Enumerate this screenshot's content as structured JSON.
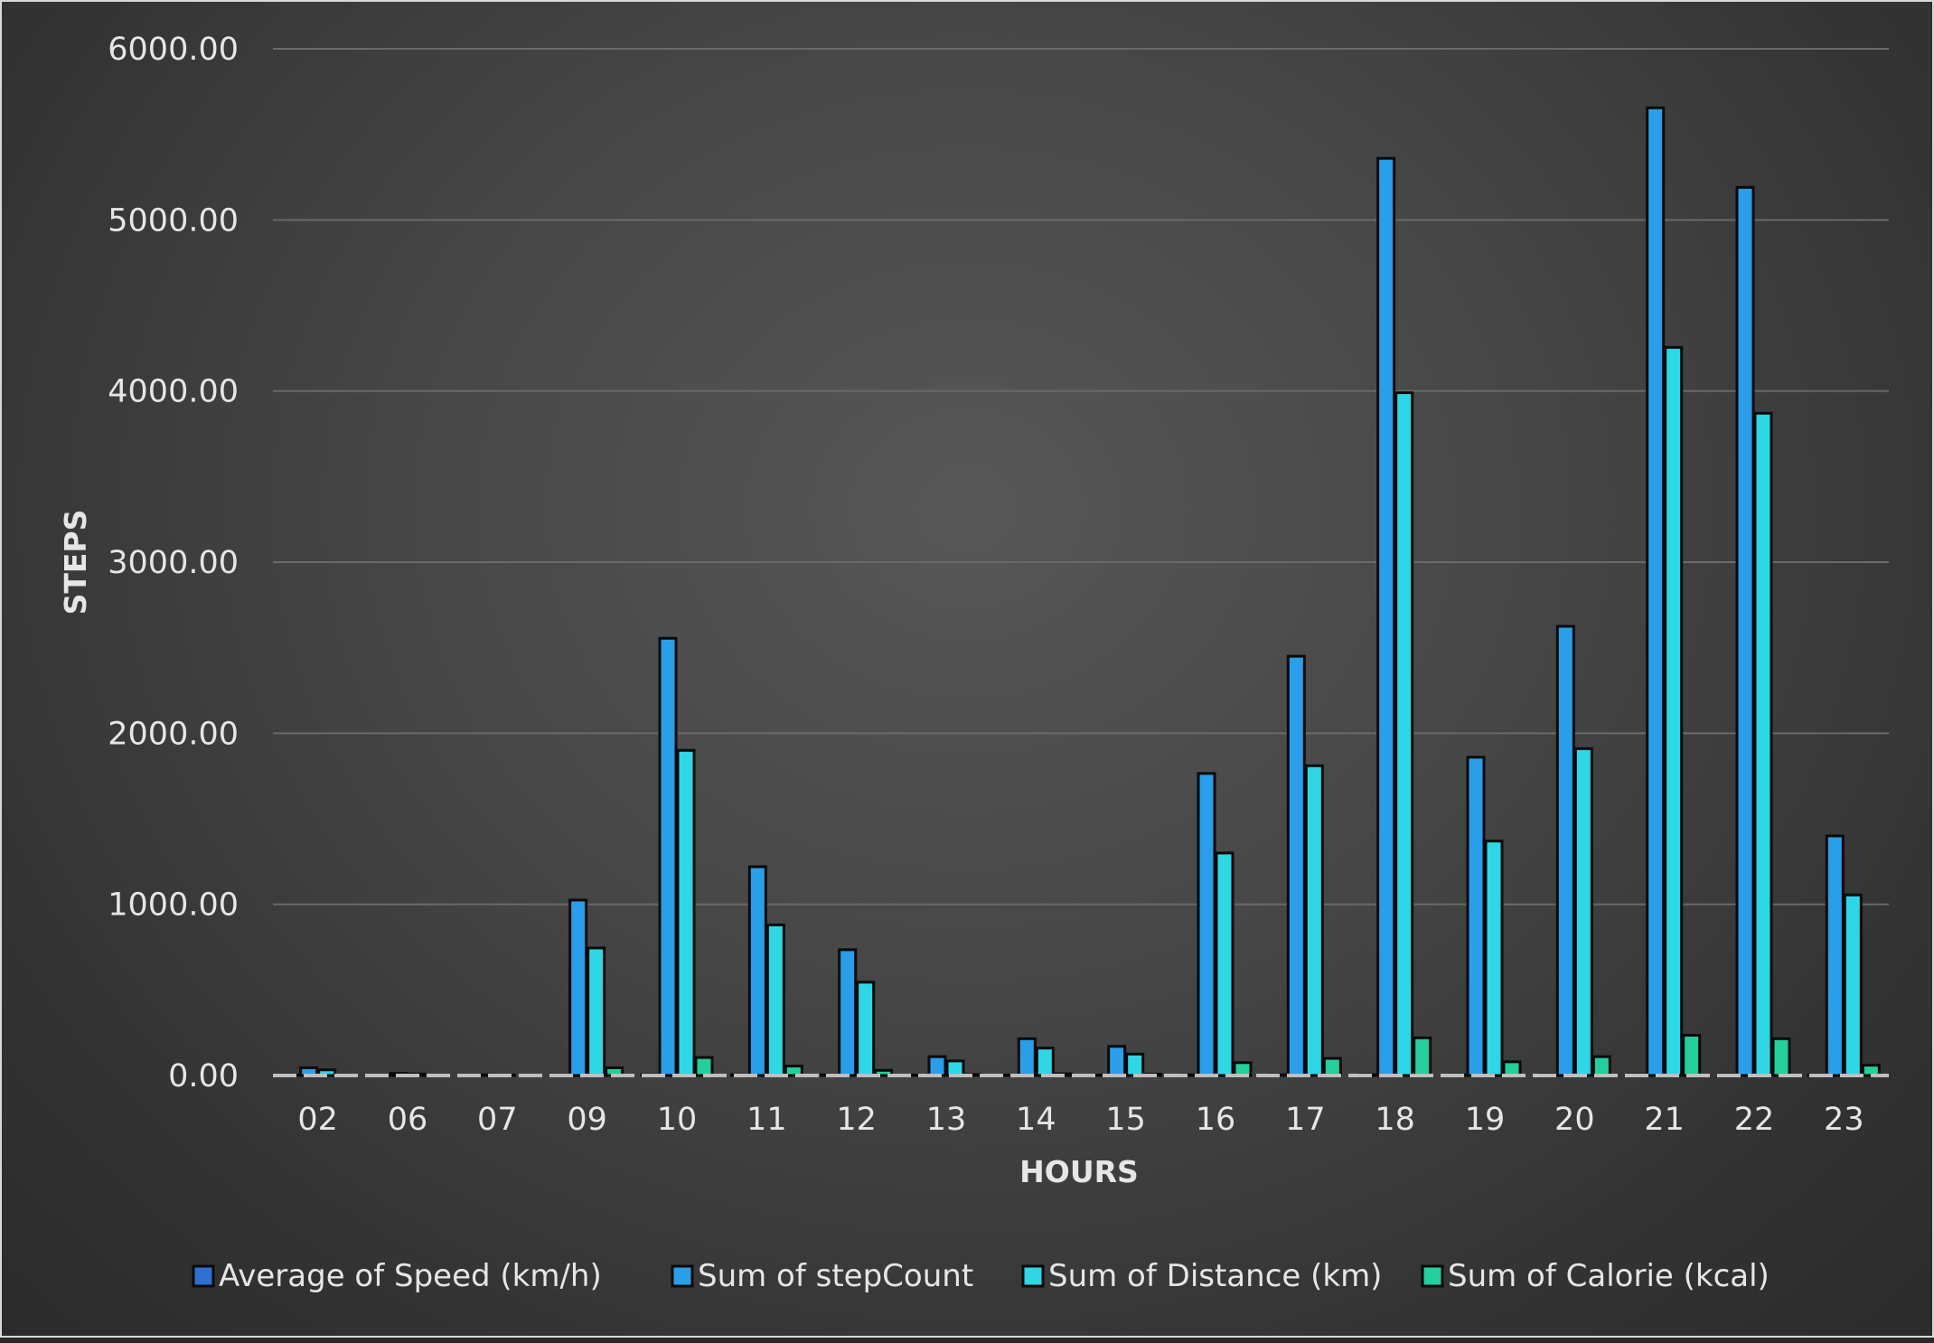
{
  "colors": {
    "speed": "#2f6fd0",
    "steps": "#2a9ee8",
    "distance": "#2ed6e6",
    "calorie": "#24cf9c",
    "outline": "#0a0a0a",
    "gridline": "#6a6a6a",
    "axis_line": "#bfbfbf"
  },
  "chart_data": {
    "type": "bar",
    "xlabel": "HOURS",
    "ylabel": "STEPS",
    "ylim": [
      0,
      6000
    ],
    "ytick_labels": [
      "0.00",
      "1000.00",
      "2000.00",
      "3000.00",
      "4000.00",
      "5000.00",
      "6000.00"
    ],
    "yticks": [
      0,
      1000,
      2000,
      3000,
      4000,
      5000,
      6000
    ],
    "grid": true,
    "legend_position": "bottom",
    "categories": [
      "02",
      "06",
      "07",
      "09",
      "10",
      "11",
      "12",
      "13",
      "14",
      "15",
      "16",
      "17",
      "18",
      "19",
      "20",
      "21",
      "22",
      "23"
    ],
    "series": [
      {
        "name": "Average of Speed (km/h)",
        "color_key": "speed",
        "values": [
          3,
          2,
          1,
          4,
          5,
          4,
          4,
          3,
          3,
          3,
          4,
          5,
          5,
          4,
          5,
          5,
          5,
          4
        ]
      },
      {
        "name": "Sum of stepCount",
        "color_key": "steps",
        "values": [
          45,
          12,
          4,
          1025,
          2555,
          1220,
          735,
          110,
          215,
          170,
          1765,
          2450,
          5360,
          1860,
          2625,
          5655,
          5190,
          1400
        ]
      },
      {
        "name": "Sum of Distance (km)",
        "color_key": "distance",
        "values": [
          33,
          9,
          3,
          745,
          1900,
          880,
          545,
          85,
          160,
          125,
          1300,
          1810,
          3990,
          1370,
          1910,
          4255,
          3870,
          1055
        ]
      },
      {
        "name": "Sum of Calorie (kcal)",
        "color_key": "calorie",
        "values": [
          2,
          1,
          0,
          45,
          105,
          55,
          30,
          6,
          10,
          8,
          75,
          100,
          220,
          80,
          110,
          235,
          215,
          60
        ]
      }
    ]
  }
}
